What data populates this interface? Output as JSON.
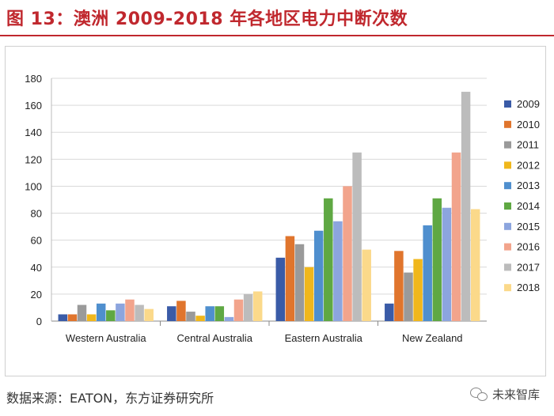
{
  "title": "图 13：澳洲 2009-2018 年各地区电力中断次数",
  "source": "数据来源：EATON，东方证券研究所",
  "watermark": "未来智库",
  "colors": {
    "title": "#c0282e",
    "series": [
      "#3a5ba7",
      "#e0752d",
      "#9a9a9a",
      "#f0b71c",
      "#4f8fce",
      "#5fa843",
      "#8ca5de",
      "#f2a48c",
      "#bcbcbc",
      "#fbd98a"
    ]
  },
  "chart_data": {
    "type": "bar",
    "title": "",
    "xlabel": "",
    "ylabel": "",
    "ylim": [
      0,
      180
    ],
    "yticks": [
      "0",
      "20",
      "40",
      "60",
      "80",
      "100",
      "120",
      "140",
      "160",
      "180"
    ],
    "categories": [
      "Western Australia",
      "Central Australia",
      "Eastern Australia",
      "New Zealand"
    ],
    "series": [
      {
        "name": "2009",
        "values": [
          5,
          11,
          47,
          13
        ]
      },
      {
        "name": "2010",
        "values": [
          5,
          15,
          63,
          52
        ]
      },
      {
        "name": "2011",
        "values": [
          12,
          7,
          57,
          36
        ]
      },
      {
        "name": "2012",
        "values": [
          5,
          4,
          40,
          46
        ]
      },
      {
        "name": "2013",
        "values": [
          13,
          11,
          67,
          71
        ]
      },
      {
        "name": "2014",
        "values": [
          8,
          11,
          91,
          91
        ]
      },
      {
        "name": "2015",
        "values": [
          13,
          3,
          74,
          84
        ]
      },
      {
        "name": "2016",
        "values": [
          16,
          16,
          100,
          125
        ]
      },
      {
        "name": "2017",
        "values": [
          12,
          20,
          125,
          170
        ]
      },
      {
        "name": "2018",
        "values": [
          9,
          22,
          53,
          83
        ]
      }
    ],
    "legend": "right"
  }
}
